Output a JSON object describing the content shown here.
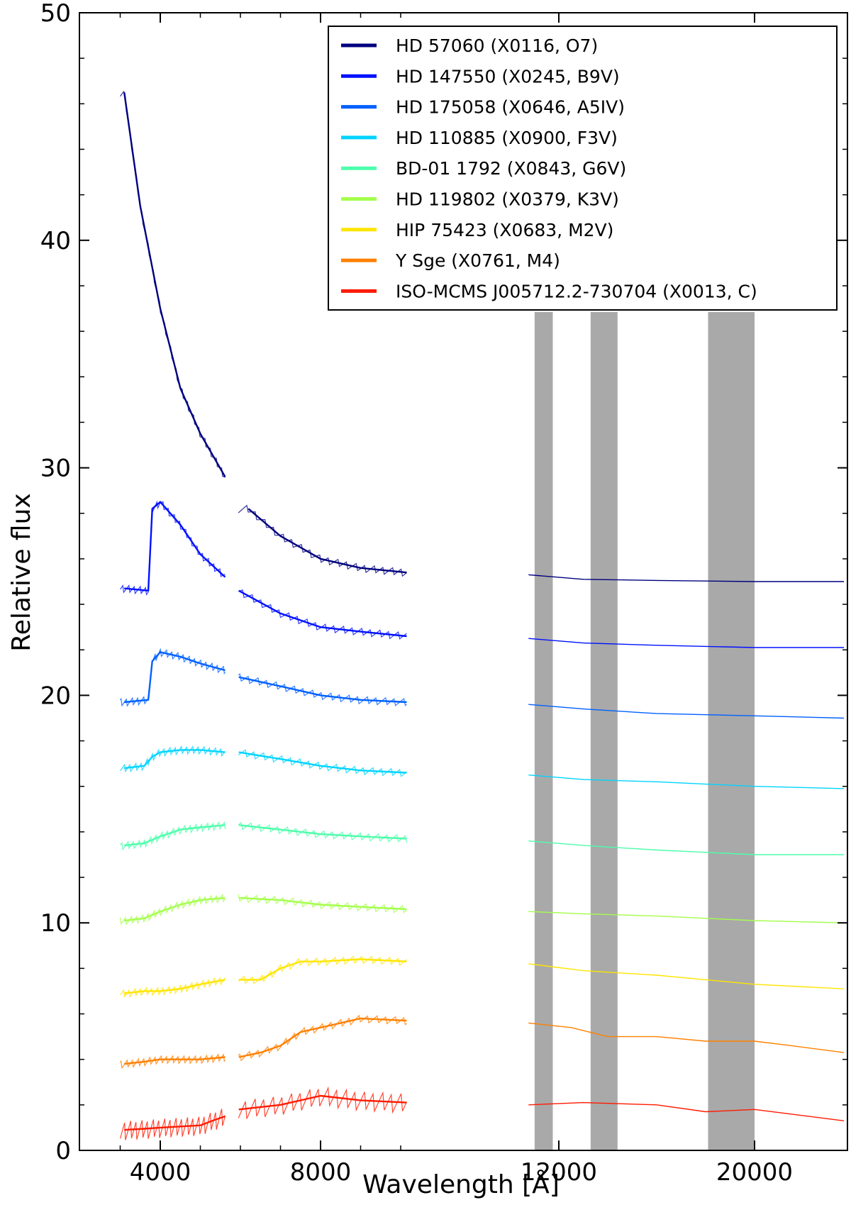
{
  "chart_data": {
    "type": "line",
    "xlabel": "Wavelength [Å]",
    "ylabel": "Relative flux",
    "ylim": [
      0,
      50
    ],
    "yticks": [
      "0",
      "10",
      "20",
      "30",
      "40",
      "50"
    ],
    "xticks": [
      "4000",
      "8000",
      "12000",
      "20000"
    ],
    "x_axis_note": "x axis is piecewise: 3000–10200 Å linear (4000 and 8000 ticks); near-infrared segment 10200–24800 Å with 12000 and 20000 ticks",
    "segments_angstrom": [
      [
        3000,
        5650
      ],
      [
        5950,
        10200
      ],
      [
        10500,
        24800
      ]
    ],
    "shaded_bands_angstrom": [
      [
        11200,
        11800
      ],
      [
        13300,
        14400
      ],
      [
        18100,
        20000
      ]
    ],
    "legend_position": "top-right",
    "series": [
      {
        "name": "HD 57060 (X0116, O7)",
        "color": "#00007f",
        "points": [
          [
            3100,
            46.5
          ],
          [
            3500,
            41.5
          ],
          [
            4000,
            37.0
          ],
          [
            4500,
            33.5
          ],
          [
            5000,
            31.5
          ],
          [
            5620,
            29.6
          ],
          [
            6200,
            28.2
          ],
          [
            7000,
            27.0
          ],
          [
            8000,
            26.0
          ],
          [
            9000,
            25.6
          ],
          [
            10150,
            25.4
          ],
          [
            11000,
            25.3
          ],
          [
            13000,
            25.1
          ],
          [
            16000,
            25.05
          ],
          [
            20000,
            25.0
          ],
          [
            24800,
            25.0
          ]
        ]
      },
      {
        "name": "HD 147550 (X0245, B9V)",
        "color": "#0010ff",
        "points": [
          [
            3100,
            24.7
          ],
          [
            3700,
            24.6
          ],
          [
            3800,
            28.2
          ],
          [
            4000,
            28.5
          ],
          [
            4500,
            27.5
          ],
          [
            5000,
            26.2
          ],
          [
            5620,
            25.2
          ],
          [
            5960,
            24.6
          ],
          [
            7000,
            23.6
          ],
          [
            8000,
            23.0
          ],
          [
            9000,
            22.8
          ],
          [
            10150,
            22.6
          ],
          [
            11000,
            22.5
          ],
          [
            13000,
            22.3
          ],
          [
            16000,
            22.2
          ],
          [
            20000,
            22.1
          ],
          [
            24800,
            22.1
          ]
        ]
      },
      {
        "name": "HD 175058 (X0646, A5IV)",
        "color": "#0060ff",
        "points": [
          [
            3100,
            19.7
          ],
          [
            3700,
            19.8
          ],
          [
            3800,
            21.5
          ],
          [
            4000,
            21.9
          ],
          [
            4500,
            21.7
          ],
          [
            5000,
            21.4
          ],
          [
            5620,
            21.1
          ],
          [
            5960,
            20.8
          ],
          [
            7000,
            20.4
          ],
          [
            8000,
            20.0
          ],
          [
            9000,
            19.8
          ],
          [
            10150,
            19.7
          ],
          [
            11000,
            19.6
          ],
          [
            13000,
            19.4
          ],
          [
            16000,
            19.2
          ],
          [
            20000,
            19.1
          ],
          [
            24800,
            19.0
          ]
        ]
      },
      {
        "name": "HD 110885 (X0900, F3V)",
        "color": "#00d4ff",
        "points": [
          [
            3100,
            16.8
          ],
          [
            3600,
            16.9
          ],
          [
            3800,
            17.3
          ],
          [
            4000,
            17.5
          ],
          [
            4500,
            17.6
          ],
          [
            5000,
            17.6
          ],
          [
            5620,
            17.5
          ],
          [
            5960,
            17.5
          ],
          [
            7000,
            17.2
          ],
          [
            8000,
            16.9
          ],
          [
            9000,
            16.7
          ],
          [
            10150,
            16.6
          ],
          [
            11000,
            16.5
          ],
          [
            13000,
            16.3
          ],
          [
            16000,
            16.2
          ],
          [
            20000,
            16.0
          ],
          [
            24800,
            15.9
          ]
        ]
      },
      {
        "name": "BD-01 1792 (X0843, G6V)",
        "color": "#4cffaa",
        "points": [
          [
            3100,
            13.4
          ],
          [
            3600,
            13.5
          ],
          [
            4000,
            13.8
          ],
          [
            4500,
            14.1
          ],
          [
            5000,
            14.2
          ],
          [
            5620,
            14.3
          ],
          [
            5960,
            14.3
          ],
          [
            7000,
            14.1
          ],
          [
            8000,
            13.9
          ],
          [
            9000,
            13.8
          ],
          [
            10150,
            13.7
          ],
          [
            11000,
            13.6
          ],
          [
            13000,
            13.4
          ],
          [
            16000,
            13.2
          ],
          [
            20000,
            13.0
          ],
          [
            24800,
            13.0
          ]
        ]
      },
      {
        "name": "HD 119802 (X0379, K3V)",
        "color": "#a4ff4c",
        "points": [
          [
            3100,
            10.1
          ],
          [
            3600,
            10.2
          ],
          [
            4000,
            10.5
          ],
          [
            4500,
            10.8
          ],
          [
            5000,
            11.0
          ],
          [
            5620,
            11.1
          ],
          [
            5960,
            11.1
          ],
          [
            7000,
            11.0
          ],
          [
            8000,
            10.8
          ],
          [
            9000,
            10.7
          ],
          [
            10150,
            10.6
          ],
          [
            11000,
            10.5
          ],
          [
            13000,
            10.4
          ],
          [
            16000,
            10.3
          ],
          [
            20000,
            10.1
          ],
          [
            24800,
            10.0
          ]
        ]
      },
      {
        "name": "HIP 75423 (X0683, M2V)",
        "color": "#ffe500",
        "points": [
          [
            3100,
            6.9
          ],
          [
            3600,
            7.0
          ],
          [
            4000,
            7.0
          ],
          [
            4500,
            7.1
          ],
          [
            5000,
            7.3
          ],
          [
            5620,
            7.5
          ],
          [
            5960,
            7.5
          ],
          [
            6500,
            7.5
          ],
          [
            7000,
            8.0
          ],
          [
            7500,
            8.3
          ],
          [
            8000,
            8.3
          ],
          [
            9000,
            8.4
          ],
          [
            10150,
            8.3
          ],
          [
            11000,
            8.2
          ],
          [
            13000,
            7.9
          ],
          [
            16000,
            7.7
          ],
          [
            20000,
            7.3
          ],
          [
            24800,
            7.1
          ]
        ]
      },
      {
        "name": "Y Sge (X0761, M4)",
        "color": "#ff8000",
        "points": [
          [
            3100,
            3.8
          ],
          [
            3600,
            3.9
          ],
          [
            4000,
            4.0
          ],
          [
            4500,
            4.0
          ],
          [
            5000,
            4.0
          ],
          [
            5620,
            4.1
          ],
          [
            5960,
            4.1
          ],
          [
            6500,
            4.3
          ],
          [
            7000,
            4.6
          ],
          [
            7500,
            5.2
          ],
          [
            8000,
            5.4
          ],
          [
            8500,
            5.6
          ],
          [
            9000,
            5.8
          ],
          [
            10150,
            5.7
          ],
          [
            11000,
            5.6
          ],
          [
            12500,
            5.4
          ],
          [
            14000,
            5.0
          ],
          [
            16000,
            5.0
          ],
          [
            18000,
            4.8
          ],
          [
            20000,
            4.8
          ],
          [
            22000,
            4.6
          ],
          [
            24800,
            4.3
          ]
        ]
      },
      {
        "name": "ISO-MCMS J005712.2-730704 (X0013, C)",
        "color": "#ff1a00",
        "points": [
          [
            3100,
            0.9
          ],
          [
            3600,
            0.95
          ],
          [
            4000,
            1.0
          ],
          [
            4500,
            1.05
          ],
          [
            5000,
            1.1
          ],
          [
            5300,
            1.3
          ],
          [
            5620,
            1.5
          ],
          [
            5960,
            1.8
          ],
          [
            7000,
            2.0
          ],
          [
            8000,
            2.4
          ],
          [
            9000,
            2.2
          ],
          [
            10150,
            2.1
          ],
          [
            11000,
            2.0
          ],
          [
            13000,
            2.1
          ],
          [
            16000,
            2.0
          ],
          [
            18000,
            1.7
          ],
          [
            20000,
            1.8
          ],
          [
            24800,
            1.3
          ]
        ]
      }
    ]
  }
}
